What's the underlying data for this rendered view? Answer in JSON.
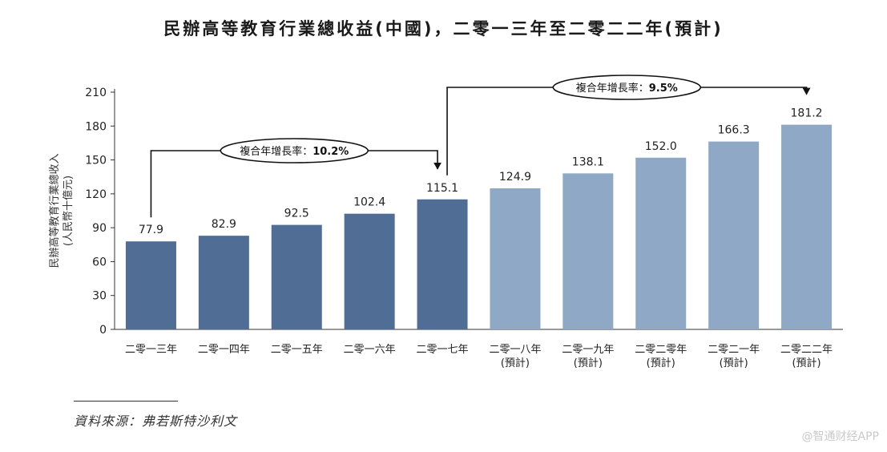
{
  "chart_data": {
    "type": "bar",
    "title": "民辦高等教育行業總收益(中國)，二零一三年至二零二二年(預計)",
    "ylabel": [
      "民辦高等教育行業總收入",
      "(人民幣十億元)"
    ],
    "ylim": [
      0,
      210
    ],
    "yticks": [
      0,
      30,
      60,
      90,
      120,
      150,
      180,
      210
    ],
    "grid": false,
    "categories": [
      [
        "二零一三年"
      ],
      [
        "二零一四年"
      ],
      [
        "二零一五年"
      ],
      [
        "二零一六年"
      ],
      [
        "二零一七年"
      ],
      [
        "二零一八年",
        "(預計)"
      ],
      [
        "二零一九年",
        "(預計)"
      ],
      [
        "二零二零年",
        "(預計)"
      ],
      [
        "二零二一年",
        "(預計)"
      ],
      [
        "二零二二年",
        "(預計)"
      ]
    ],
    "values": [
      77.9,
      82.9,
      92.5,
      102.4,
      115.1,
      124.9,
      138.1,
      152.0,
      166.3,
      181.2
    ],
    "value_labels": [
      "77.9",
      "82.9",
      "92.5",
      "102.4",
      "115.1",
      "124.9",
      "138.1",
      "152.0",
      "166.3",
      "181.2"
    ],
    "colors": {
      "actual": "#506d96",
      "forecast": "#8fa8c5"
    },
    "forecast_start_index": 5,
    "annotations": [
      {
        "label": "複合年增長率：",
        "value": "10.2%",
        "from_index": 0,
        "to_index": 4
      },
      {
        "label": "複合年增長率：",
        "value": "9.5%",
        "from_index": 4,
        "to_index": 9
      }
    ]
  },
  "source": "資料來源：弗若斯特沙利文",
  "watermark": "@智通财经APP"
}
